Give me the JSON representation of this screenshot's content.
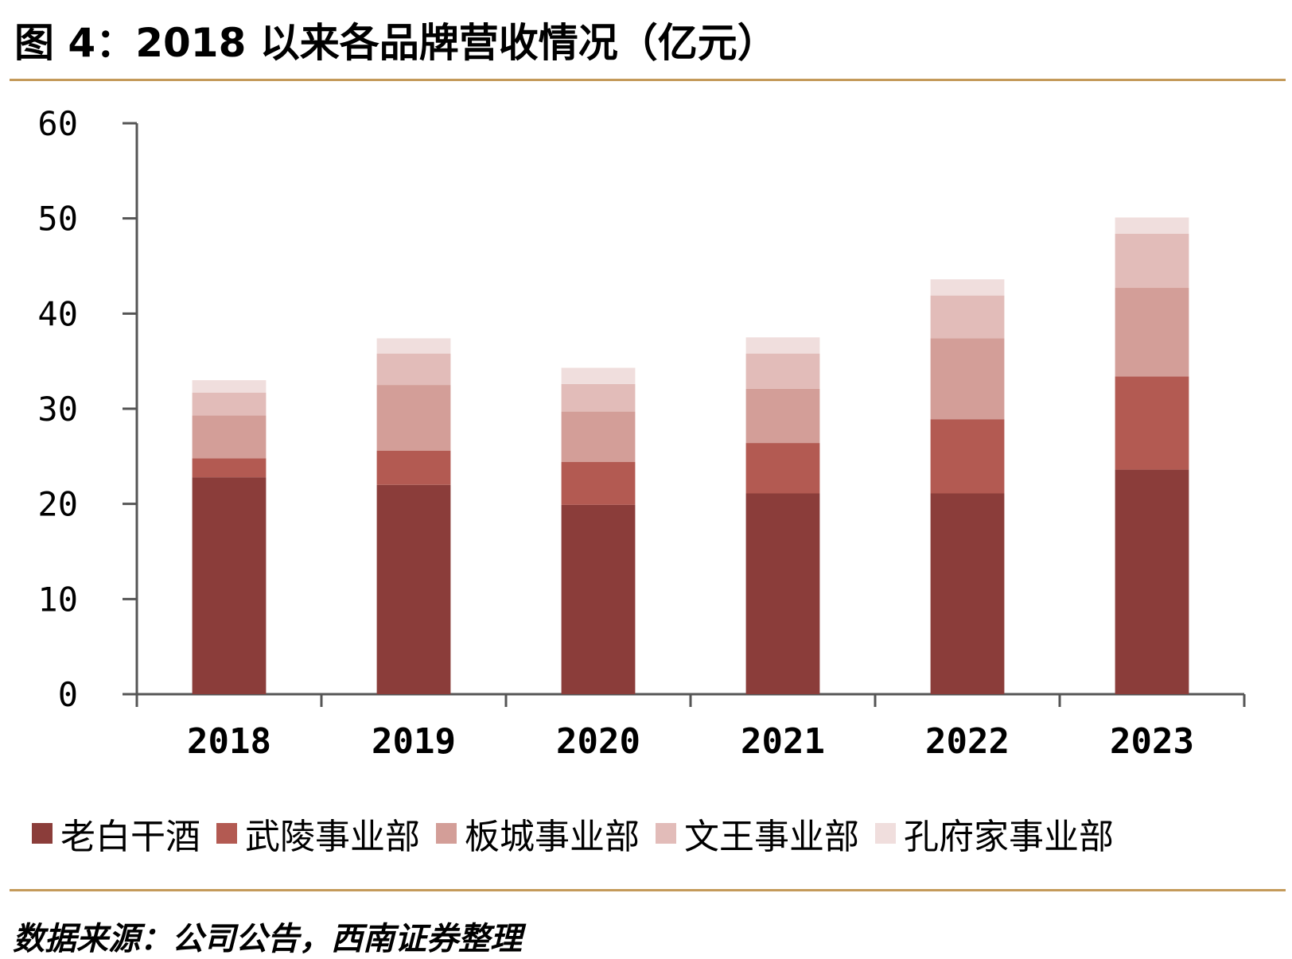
{
  "header": {
    "title": "图 4：2018 以来各品牌营收情况（亿元）"
  },
  "footer": {
    "source": "数据来源：公司公告，西南证券整理"
  },
  "colors": {
    "rule": "#c49a5a",
    "axis": "#555555"
  },
  "chart_data": {
    "type": "bar",
    "stacked": true,
    "title": "",
    "xlabel": "",
    "ylabel": "",
    "ylim": [
      0,
      60
    ],
    "yticks": [
      0,
      10,
      20,
      30,
      40,
      50,
      60
    ],
    "categories": [
      "2018",
      "2019",
      "2020",
      "2021",
      "2022",
      "2023"
    ],
    "series": [
      {
        "name": "老白干酒",
        "color": "#8b3d3a",
        "values": [
          22.8,
          22.0,
          19.9,
          21.1,
          21.1,
          23.6
        ]
      },
      {
        "name": "武陵事业部",
        "color": "#b35a52",
        "values": [
          2.0,
          3.6,
          4.5,
          5.3,
          7.8,
          9.8
        ]
      },
      {
        "name": "板城事业部",
        "color": "#d39e98",
        "values": [
          4.5,
          6.9,
          5.3,
          5.7,
          8.5,
          9.3
        ]
      },
      {
        "name": "文王事业部",
        "color": "#e2bcb9",
        "values": [
          2.4,
          3.3,
          2.9,
          3.7,
          4.5,
          5.7
        ]
      },
      {
        "name": "孔府家事业部",
        "color": "#f0dedd",
        "values": [
          1.3,
          1.6,
          1.7,
          1.7,
          1.7,
          1.7
        ]
      }
    ],
    "legend": "bottom",
    "grid": false
  }
}
